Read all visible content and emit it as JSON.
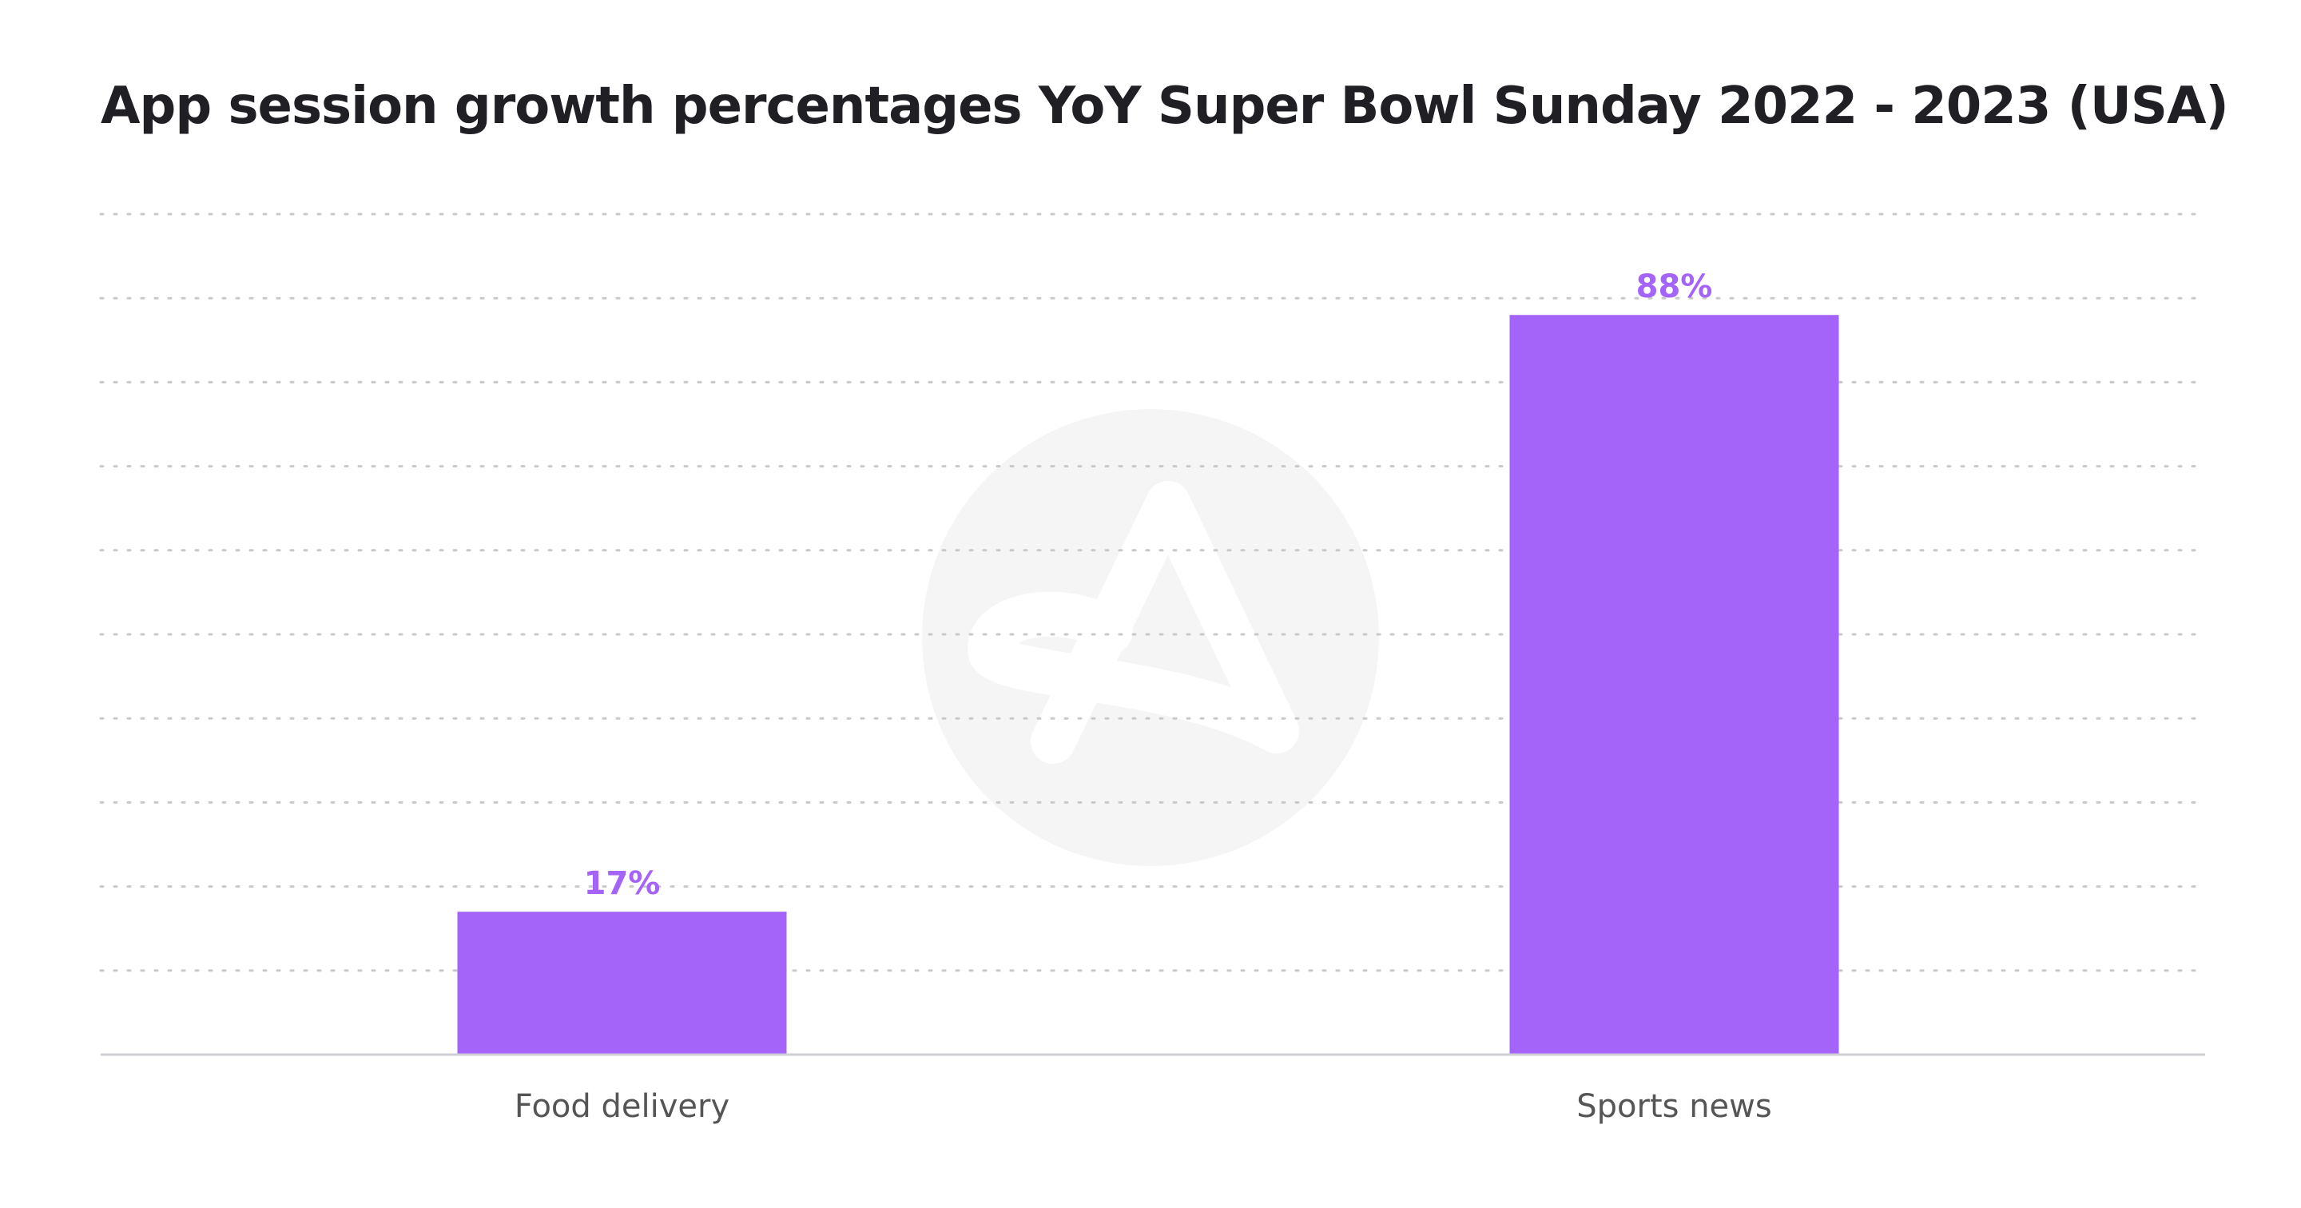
{
  "chart_data": {
    "type": "bar",
    "title": "App session growth percentages YoY Super Bowl Sunday 2022 - 2023 (USA)",
    "xlabel": "",
    "ylabel": "",
    "categories": [
      "Food delivery",
      "Sports news"
    ],
    "values": [
      17,
      88
    ],
    "value_labels": [
      "17%",
      "88%"
    ],
    "ylim": [
      0,
      100
    ],
    "grid": true,
    "legend": "none",
    "bar_color": "#a564f9",
    "label_color": "#a564f9"
  },
  "watermark": {
    "icon": "adjust-logo-icon",
    "color": "#f5f5f5"
  }
}
